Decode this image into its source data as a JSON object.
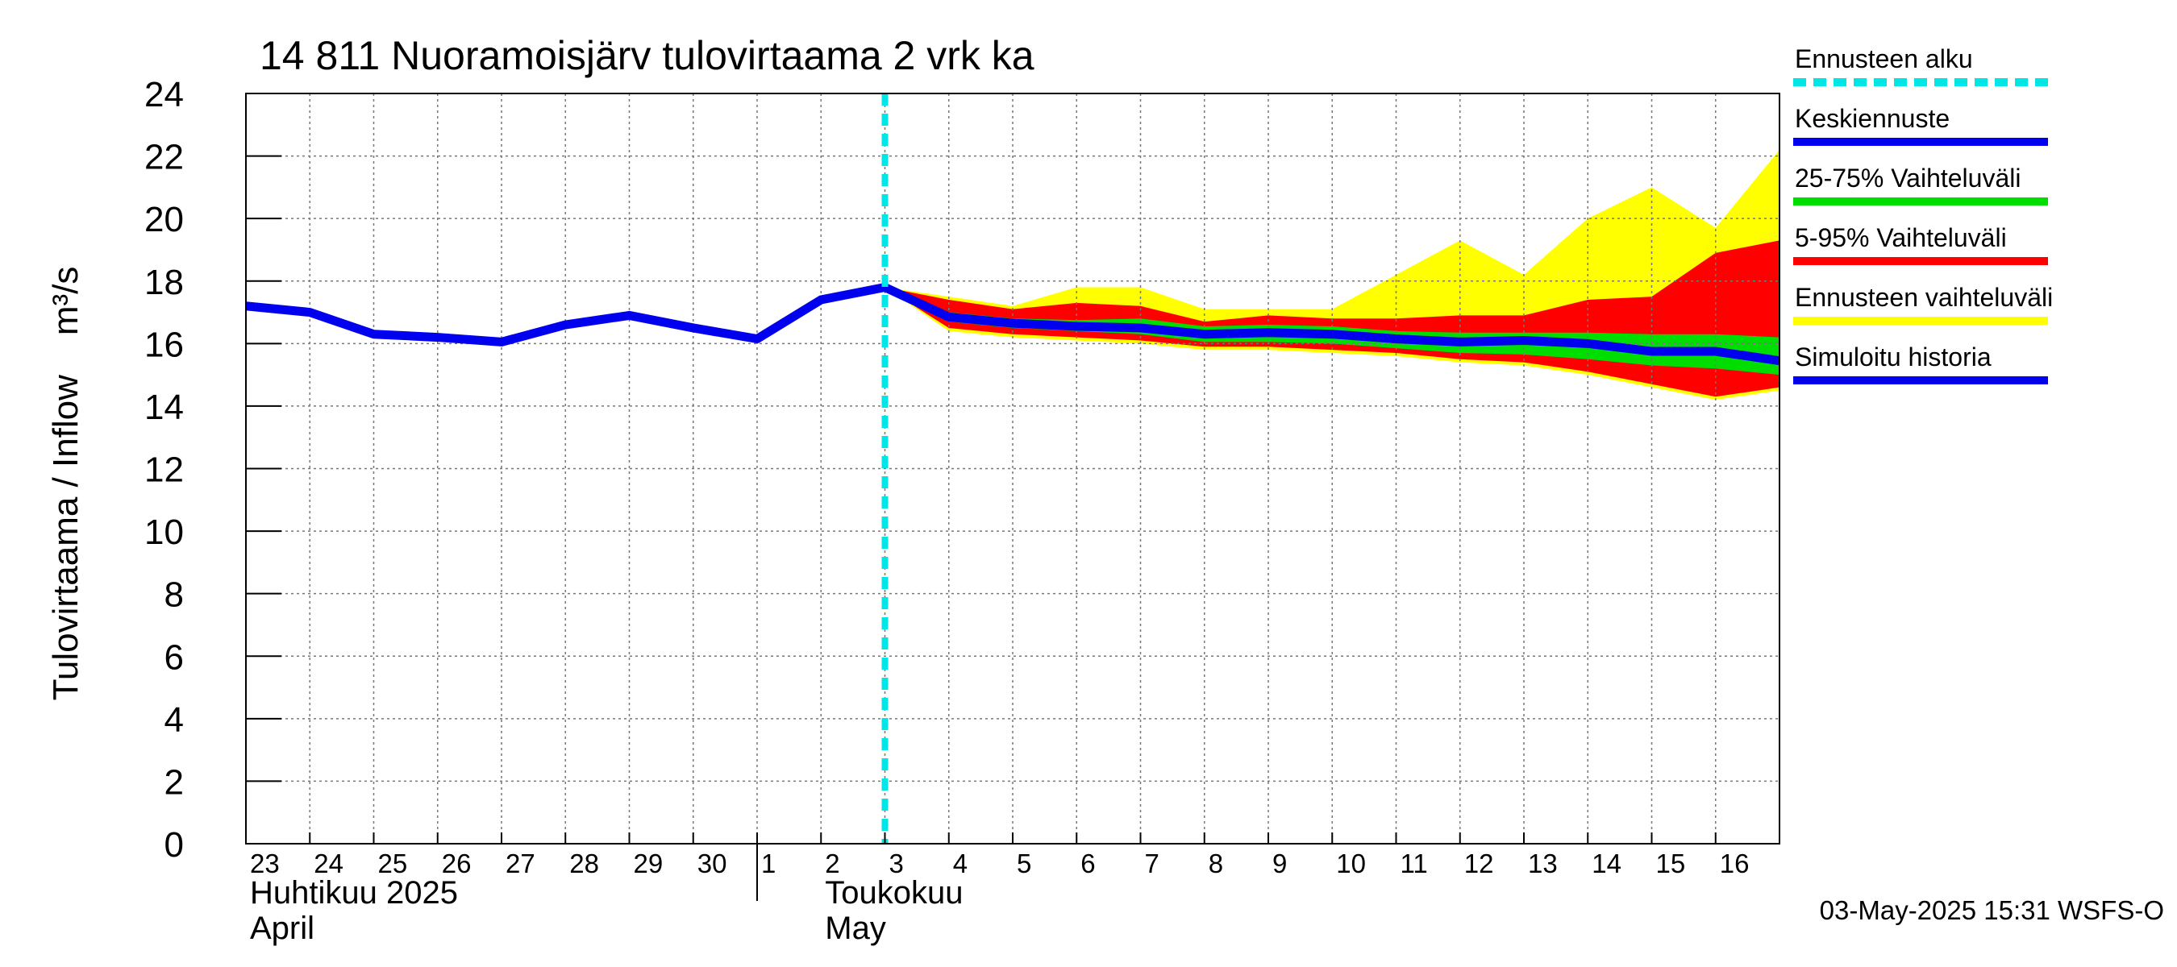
{
  "chart_data": {
    "type": "area",
    "title": "14 811 Nuoramoisjärv tulovirtaama 2 vrk ka",
    "ylabel": "Tulovirtaama / Inflow    m³/s",
    "ylim": [
      0,
      24
    ],
    "yticks": [
      0,
      2,
      4,
      6,
      8,
      10,
      12,
      14,
      16,
      18,
      20,
      22,
      24
    ],
    "x_range": [
      0,
      24
    ],
    "grid": true,
    "day_labels": [
      "23",
      "24",
      "25",
      "26",
      "27",
      "28",
      "29",
      "30",
      "1",
      "2",
      "3",
      "4",
      "5",
      "6",
      "7",
      "8",
      "9",
      "10",
      "11",
      "12",
      "13",
      "14",
      "15",
      "16"
    ],
    "month_labels": [
      {
        "line1": "Huhtikuu  2025",
        "line2": "April",
        "at": 0
      },
      {
        "line1": "Toukokuu",
        "line2": "May",
        "at": 9
      }
    ],
    "month_boundary": 8,
    "forecast_start": 10,
    "x": [
      10,
      11,
      12,
      13,
      14,
      15,
      16,
      17,
      18,
      19,
      20,
      21,
      22,
      23,
      24
    ],
    "series": [
      {
        "name": "Simuloitu historia",
        "color": "#0000ee",
        "x": [
          0,
          1,
          2,
          3,
          4,
          5,
          6,
          7,
          8,
          9,
          10
        ],
        "values": [
          17.2,
          17.0,
          16.3,
          16.2,
          16.05,
          16.6,
          16.9,
          16.5,
          16.15,
          17.4,
          17.8
        ]
      },
      {
        "name": "Ennusteen vaihteluväli",
        "color": "#ffff00",
        "upper": [
          17.8,
          17.5,
          17.2,
          17.8,
          17.8,
          17.1,
          17.1,
          17.1,
          18.2,
          19.3,
          18.2,
          20.0,
          21.0,
          19.7,
          22.2
        ],
        "lower": [
          17.8,
          16.4,
          16.2,
          16.1,
          16.0,
          15.8,
          15.8,
          15.7,
          15.6,
          15.4,
          15.3,
          15.0,
          14.6,
          14.2,
          14.5
        ]
      },
      {
        "name": "5-95% Vaihteluväli",
        "color": "#ff0000",
        "upper": [
          17.8,
          17.4,
          17.1,
          17.3,
          17.2,
          16.7,
          16.9,
          16.8,
          16.8,
          16.9,
          16.9,
          17.4,
          17.5,
          18.9,
          19.3
        ],
        "lower": [
          17.8,
          16.5,
          16.3,
          16.2,
          16.1,
          15.9,
          15.9,
          15.8,
          15.7,
          15.5,
          15.4,
          15.1,
          14.7,
          14.3,
          14.6
        ]
      },
      {
        "name": "25-75% Vaihteluväli",
        "color": "#00dd00",
        "upper": [
          17.8,
          17.0,
          16.8,
          16.75,
          16.8,
          16.55,
          16.6,
          16.55,
          16.4,
          16.35,
          16.35,
          16.35,
          16.3,
          16.3,
          16.2
        ],
        "lower": [
          17.8,
          16.7,
          16.5,
          16.4,
          16.3,
          16.05,
          16.05,
          16.0,
          15.85,
          15.7,
          15.65,
          15.5,
          15.3,
          15.2,
          15.0
        ]
      },
      {
        "name": "Keskiennuste",
        "color": "#0000ee",
        "values": [
          17.8,
          16.85,
          16.65,
          16.55,
          16.5,
          16.3,
          16.35,
          16.3,
          16.15,
          16.05,
          16.1,
          16.0,
          15.75,
          15.75,
          15.45
        ]
      }
    ],
    "legend": [
      {
        "label": "Ennusteen alku",
        "color": "#00e5e5",
        "style": "dashed"
      },
      {
        "label": "Keskiennuste",
        "color": "#0000ee",
        "style": "solid"
      },
      {
        "label": "25-75% Vaihteluväli",
        "color": "#00dd00",
        "style": "solid"
      },
      {
        "label": "5-95% Vaihteluväli",
        "color": "#ff0000",
        "style": "solid"
      },
      {
        "label": "Ennusteen vaihteluväli",
        "color": "#ffff00",
        "style": "solid"
      },
      {
        "label": "Simuloitu historia",
        "color": "#0000ee",
        "style": "solid"
      }
    ],
    "legend_position": "right",
    "footer": "03-May-2025 15:31 WSFS-O"
  }
}
